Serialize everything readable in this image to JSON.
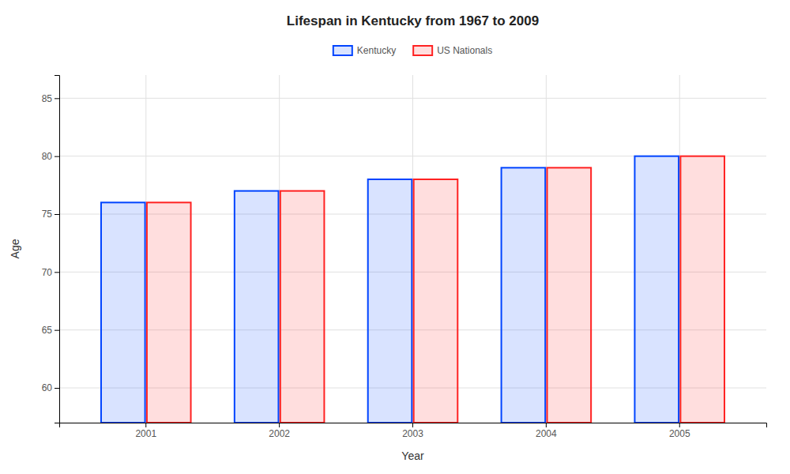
{
  "chart_data": {
    "type": "bar",
    "title": "Lifespan in Kentucky from 1967 to 2009",
    "xlabel": "Year",
    "ylabel": "Age",
    "categories": [
      "2001",
      "2002",
      "2003",
      "2004",
      "2005"
    ],
    "series": [
      {
        "name": "Kentucky",
        "color": "#0044ff",
        "values": [
          76,
          77,
          78,
          79,
          80
        ]
      },
      {
        "name": "US Nationals",
        "color": "#ff2222",
        "values": [
          76,
          77,
          78,
          79,
          80
        ]
      }
    ],
    "ylim": [
      57,
      87
    ],
    "yticks": [
      60,
      65,
      70,
      75,
      80,
      85
    ],
    "grid": true,
    "legend": "top"
  }
}
